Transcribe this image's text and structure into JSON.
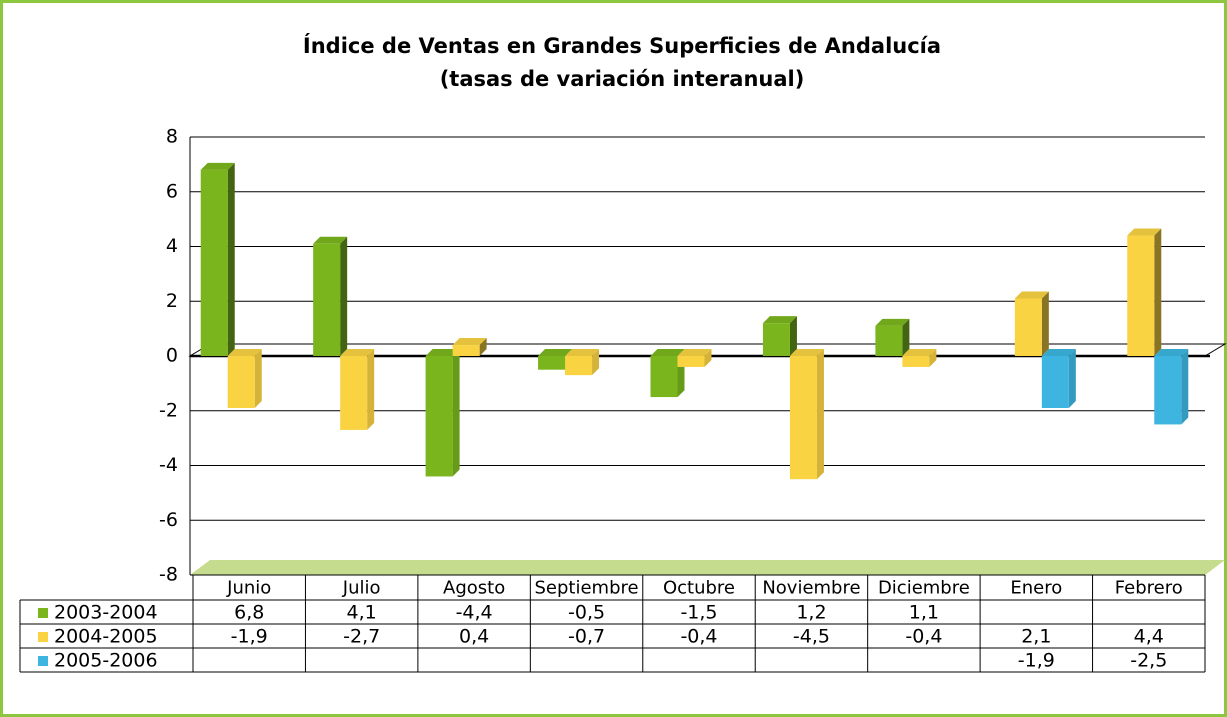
{
  "chart_data": {
    "type": "bar",
    "title": "Índice de Ventas en Grandes Superficies de Andalucía",
    "subtitle": "(tasas de variación interanual)",
    "categories": [
      "Junio",
      "Julio",
      "Agosto",
      "Septiembre",
      "Octubre",
      "Noviembre",
      "Diciembre",
      "Enero",
      "Febrero"
    ],
    "series": [
      {
        "name": "2003-2004",
        "color": "#7ab51d",
        "values": [
          6.8,
          4.1,
          -4.4,
          -0.5,
          -1.5,
          1.2,
          1.1,
          null,
          null
        ],
        "value_labels": [
          "6,8",
          "4,1",
          "-4,4",
          "-0,5",
          "-1,5",
          "1,2",
          "1,1",
          null,
          null
        ]
      },
      {
        "name": "2004-2005",
        "color": "#f9d342",
        "values": [
          -1.9,
          -2.7,
          0.4,
          -0.7,
          -0.4,
          -4.5,
          -0.4,
          2.1,
          4.4
        ],
        "value_labels": [
          "-1,9",
          "-2,7",
          "0,4",
          "-0,7",
          "-0,4",
          "-4,5",
          "-0,4",
          "2,1",
          "4,4"
        ]
      },
      {
        "name": "2005-2006",
        "color": "#3db5e0",
        "values": [
          null,
          null,
          null,
          null,
          null,
          null,
          null,
          -1.9,
          -2.5
        ],
        "value_labels": [
          null,
          null,
          null,
          null,
          null,
          null,
          null,
          "-1,9",
          "-2,5"
        ]
      }
    ],
    "ylim": [
      -8,
      8
    ],
    "yticks": [
      -8,
      -6,
      -4,
      -2,
      0,
      2,
      4,
      6,
      8
    ],
    "grid": true
  }
}
